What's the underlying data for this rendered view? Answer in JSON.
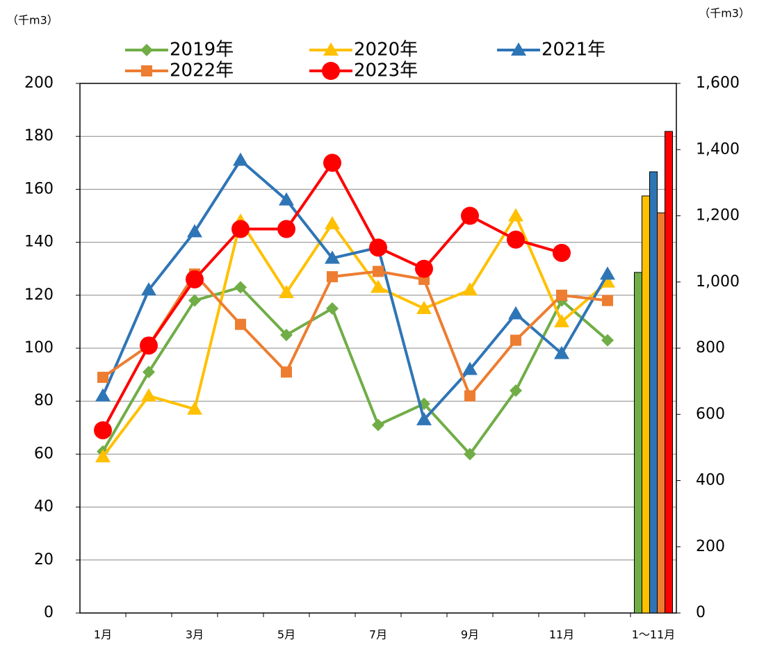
{
  "chart_data": {
    "type": "line",
    "y_unit": "（千m3）",
    "y2_unit": "（千m3）",
    "categories": [
      "1月",
      null,
      "3月",
      null,
      "5月",
      null,
      "7月",
      null,
      "9月",
      null,
      "11月",
      null,
      "1〜11月"
    ],
    "series": [
      {
        "name": "2019年",
        "color": "#70ad47",
        "marker": "diamond",
        "values": [
          61,
          91,
          118,
          123,
          105,
          115,
          71,
          79,
          60,
          84,
          118,
          103,
          null
        ],
        "total": 1029
      },
      {
        "name": "2020年",
        "color": "#ffc000",
        "marker": "triangle",
        "values": [
          59,
          82,
          77,
          148,
          121,
          147,
          123,
          115,
          122,
          150,
          110,
          125,
          null
        ],
        "total": 1260
      },
      {
        "name": "2021年",
        "color": "#2e75b6",
        "marker": "triangle",
        "values": [
          82,
          122,
          144,
          171,
          156,
          134,
          138,
          73,
          92,
          113,
          98,
          128,
          null
        ],
        "total": 1333
      },
      {
        "name": "2022年",
        "color": "#ed7d31",
        "marker": "square",
        "values": [
          89,
          101,
          128,
          109,
          91,
          127,
          129,
          126,
          82,
          103,
          120,
          118,
          null
        ],
        "total": 1209
      },
      {
        "name": "2023年",
        "color": "#ff0000",
        "marker": "circle",
        "values": [
          69,
          101,
          126,
          145,
          145,
          170,
          138,
          130,
          150,
          141,
          136,
          null,
          null
        ],
        "total": 1455
      }
    ],
    "ylim": [
      0,
      200
    ],
    "yticks": [
      0,
      20,
      40,
      60,
      80,
      100,
      120,
      140,
      160,
      180,
      200
    ],
    "y2lim": [
      0,
      1600
    ],
    "y2ticks": [
      0,
      200,
      400,
      600,
      800,
      {
        "value": 1000,
        "label": "1,000"
      },
      {
        "value": 1200,
        "label": "1,200"
      },
      {
        "value": 1400,
        "label": "1,400"
      },
      {
        "value": 1600,
        "label": "1,600"
      }
    ],
    "grid": true
  }
}
